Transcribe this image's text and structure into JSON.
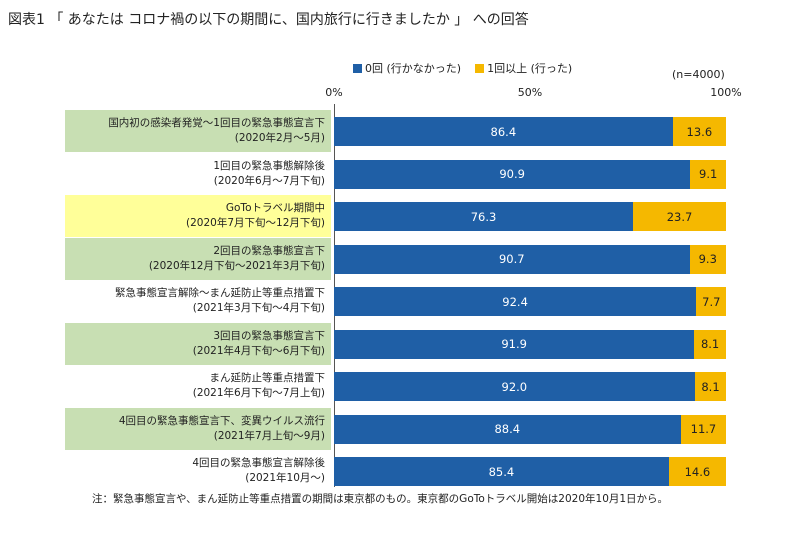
{
  "title": "図表1 「 あなたは コロナ禍の以下の期間に、国内旅行に行きましたか 」 への回答",
  "colors": {
    "zero": "#1f5fa6",
    "once": "#f5b800",
    "green_label": "#c8dfb3",
    "yellow_label": "#ffff99"
  },
  "chart_data": {
    "type": "bar",
    "orientation": "horizontal",
    "stacked": true,
    "sample_note": "(n=4000)",
    "x_ticks": [
      "0%",
      "50%",
      "100%"
    ],
    "xlim": [
      0,
      100
    ],
    "series": [
      {
        "name": "0回 (行かなかった)",
        "values": [
          86.4,
          90.9,
          76.3,
          90.7,
          92.4,
          91.9,
          92.0,
          88.4,
          85.4
        ]
      },
      {
        "name": "1回以上 (行った)",
        "values": [
          13.6,
          9.1,
          23.7,
          9.3,
          7.7,
          8.1,
          8.1,
          11.7,
          14.6
        ]
      }
    ],
    "value_labels": [
      [
        "86.4",
        "13.6"
      ],
      [
        "90.9",
        "9.1"
      ],
      [
        "76.3",
        "23.7"
      ],
      [
        "90.7",
        "9.3"
      ],
      [
        "92.4",
        "7.7"
      ],
      [
        "91.9",
        "8.1"
      ],
      [
        "92.0",
        "8.1"
      ],
      [
        "88.4",
        "11.7"
      ],
      [
        "85.4",
        "14.6"
      ]
    ],
    "categories": [
      {
        "line1": "国内初の感染者発覚～1回目の緊急事態宣言下",
        "line2": "(2020年2月～5月)",
        "highlight": "green"
      },
      {
        "line1": "1回目の緊急事態解除後",
        "line2": "(2020年6月～7月下旬)",
        "highlight": "none"
      },
      {
        "line1": "GoToトラベル期間中",
        "line2": "(2020年7月下旬～12月下旬)",
        "highlight": "yellow"
      },
      {
        "line1": "2回目の緊急事態宣言下",
        "line2": "(2020年12月下旬～2021年3月下旬)",
        "highlight": "green"
      },
      {
        "line1": "緊急事態宣言解除～まん延防止等重点措置下",
        "line2": "(2021年3月下旬～4月下旬)",
        "highlight": "none"
      },
      {
        "line1": "3回目の緊急事態宣言下",
        "line2": "(2021年4月下旬～6月下旬)",
        "highlight": "green"
      },
      {
        "line1": "まん延防止等重点措置下",
        "line2": "(2021年6月下旬～7月上旬)",
        "highlight": "none"
      },
      {
        "line1": "4回目の緊急事態宣言下、変異ウイルス流行",
        "line2": "(2021年7月上旬～9月)",
        "highlight": "green"
      },
      {
        "line1": "4回目の緊急事態宣言解除後",
        "line2": "(2021年10月～)",
        "highlight": "none"
      }
    ]
  },
  "footnote": "注：緊急事態宣言や、まん延防止等重点措置の期間は東京都のもの。東京都のGoToトラベル開始は2020年10月1日から。"
}
